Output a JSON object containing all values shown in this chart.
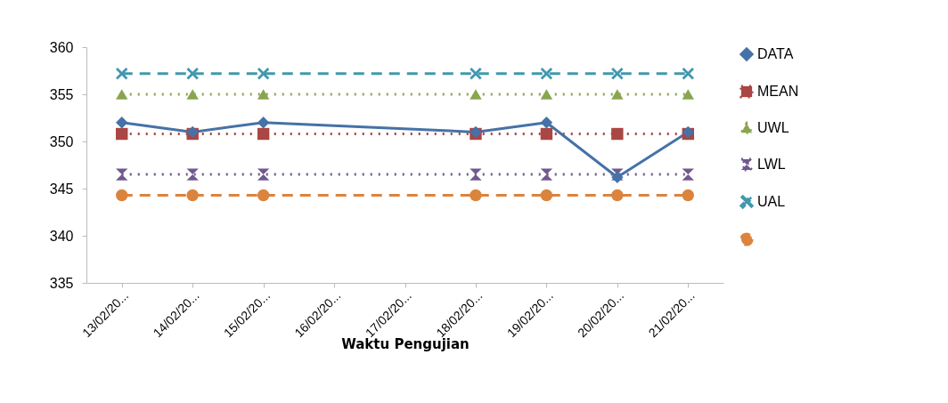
{
  "chart_data": {
    "type": "line",
    "xlabel": "Waktu Pengujian",
    "categories": [
      "13/02/20...",
      "14/02/20...",
      "15/02/20...",
      "16/02/20...",
      "17/02/20...",
      "18/02/20...",
      "19/02/20...",
      "20/02/20...",
      "21/02/20..."
    ],
    "ylim": [
      335,
      360
    ],
    "yticks": [
      335,
      340,
      345,
      350,
      355,
      360
    ],
    "grid": false,
    "legend": "right",
    "series": [
      {
        "name": "DATA",
        "color": "#4572a7",
        "marker": "diamond",
        "line_style": "solid",
        "values": [
          352,
          351,
          352,
          null,
          null,
          351,
          352,
          346.2,
          351
        ]
      },
      {
        "name": "MEAN",
        "color": "#aa4643",
        "marker": "square",
        "line_style": "dotted",
        "values": [
          350.8,
          350.8,
          350.8,
          null,
          null,
          350.8,
          350.8,
          350.8,
          350.8
        ]
      },
      {
        "name": "UWL",
        "color": "#89a54e",
        "marker": "triangle",
        "line_style": "dotted",
        "values": [
          355,
          355,
          355,
          null,
          null,
          355,
          355,
          355,
          355
        ]
      },
      {
        "name": "LWL",
        "color": "#71588f",
        "marker": "star",
        "line_style": "dotted",
        "values": [
          346.5,
          346.5,
          346.5,
          null,
          null,
          346.5,
          346.5,
          346.5,
          346.5
        ]
      },
      {
        "name": "UAL",
        "color": "#4198af",
        "marker": "cross",
        "line_style": "dashed",
        "values": [
          357.2,
          357.2,
          357.2,
          null,
          null,
          357.2,
          357.2,
          357.2,
          357.2
        ]
      },
      {
        "color": "#db843d",
        "marker": "circle",
        "line_style": "dashed",
        "values": [
          344.3,
          344.3,
          344.3,
          null,
          null,
          344.3,
          344.3,
          344.3,
          344.3
        ]
      }
    ]
  }
}
